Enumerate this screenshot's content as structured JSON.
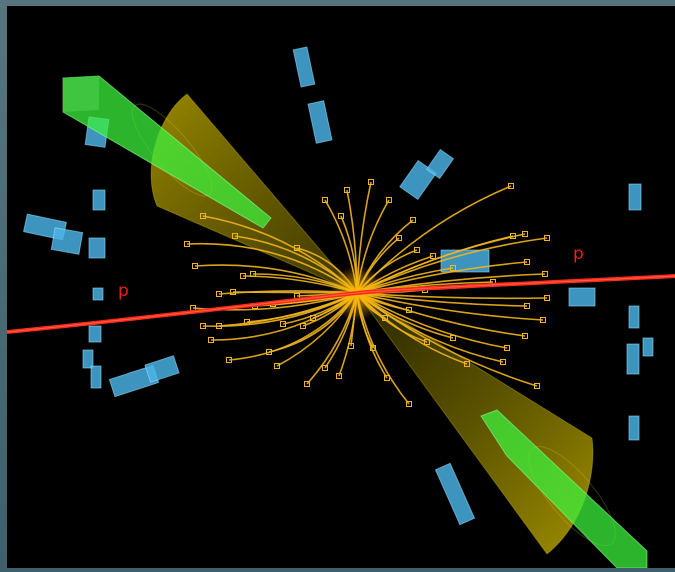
{
  "image": {
    "subject": "particle-collision-event-display",
    "background_color": "#000000",
    "frame_color": "#4e6f7b"
  },
  "beam": {
    "color": "#ff2a1a",
    "labels": [
      "p",
      "p"
    ]
  },
  "colors": {
    "tracks": "#f0b41e",
    "jet_cones": "#c8b400",
    "jet_energy_bars": "#3cf03c",
    "calorimeter_deposits": "#4ab4e8"
  },
  "counts": {
    "jets": 2,
    "charged_tracks": 60
  }
}
